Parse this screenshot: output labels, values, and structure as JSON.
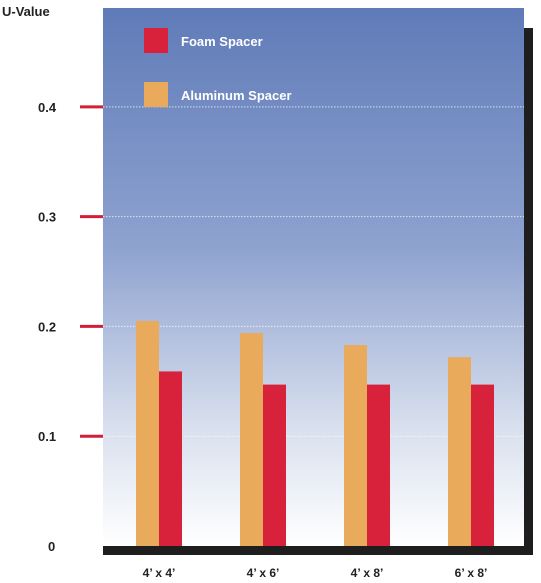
{
  "chart_data": {
    "type": "bar",
    "ylabel": "U-Value",
    "xlabel": "",
    "ylim": [
      0,
      0.49
    ],
    "yticks": [
      0,
      0.1,
      0.2,
      0.3,
      0.4
    ],
    "ytick_labels": [
      "0",
      "0.1",
      "0.2",
      "0.3",
      "0.4"
    ],
    "categories": [
      "4’ x 4’",
      "4’ x 6’",
      "4’ x 8’",
      "6’ x 8’"
    ],
    "series": [
      {
        "name": "Aluminum Spacer",
        "values": [
          0.205,
          0.194,
          0.183,
          0.172
        ],
        "color": "#E9AA5C"
      },
      {
        "name": "Foam Spacer",
        "values": [
          0.159,
          0.147,
          0.147,
          0.147
        ],
        "color": "#D8213A"
      }
    ],
    "legend": {
      "placement": "top-left",
      "entries": [
        "Foam Spacer",
        "Aluminum Spacer"
      ]
    },
    "grid": true,
    "colors": {
      "background_top": "#5F7BB8",
      "background_bottom": "#FFFFFF",
      "tick_marks": "#D31E36",
      "shadow": "#1E1E1E"
    }
  }
}
